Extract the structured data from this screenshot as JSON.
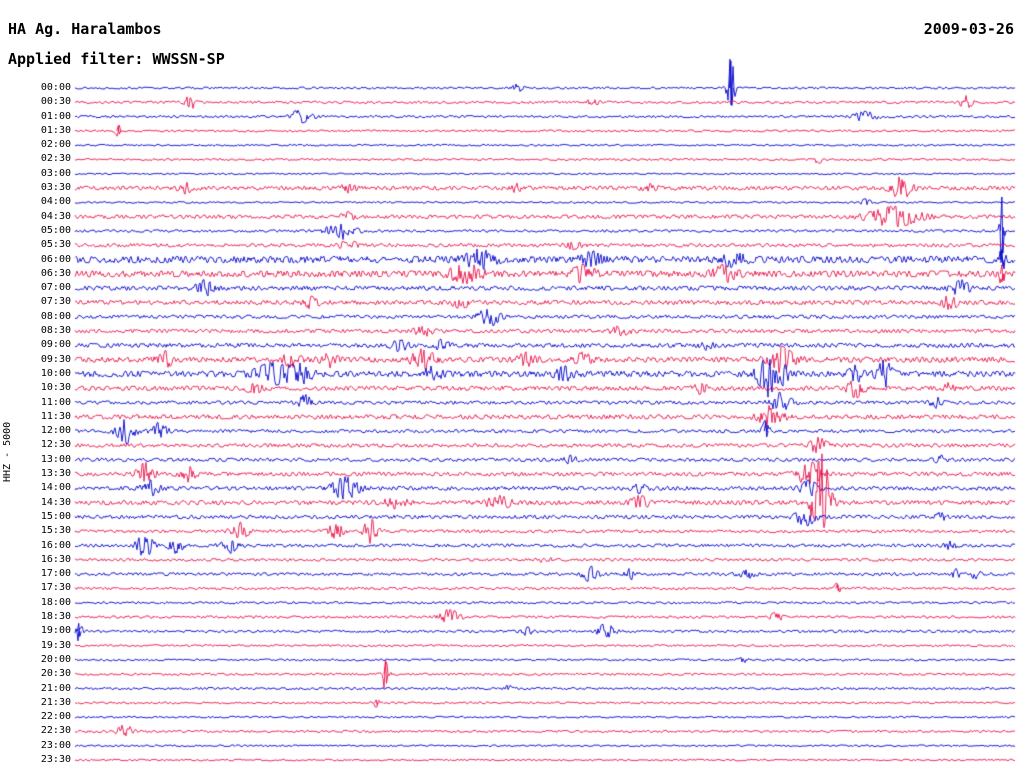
{
  "header": {
    "station": "HA Ag. Haralambos",
    "date": "2009-03-26",
    "filter": "Applied filter: WWSSN-SP"
  },
  "axis": {
    "channel": "HHZ - 5000"
  },
  "chart_data": {
    "type": "line",
    "subtype": "seismogram-helicorder",
    "title": "HA Ag. Haralambos",
    "date": "2009-03-26",
    "filter": "WWSSN-SP",
    "channel_scale_label": "HHZ - 5000",
    "x_axis": "each row is a 30-minute trace, full day 00:00-24:00",
    "colors": {
      "blue": "#0000cc",
      "red": "#e8134a"
    },
    "rows": [
      {
        "t": "00:00",
        "color": "blue",
        "noise": 0.8,
        "events": [
          [
            0.47,
            3,
            4
          ],
          [
            0.697,
            27,
            2.5
          ]
        ]
      },
      {
        "t": "00:30",
        "color": "red",
        "noise": 1.0,
        "events": [
          [
            0.122,
            8,
            3
          ],
          [
            0.55,
            2.5,
            4
          ],
          [
            0.947,
            6,
            4
          ]
        ]
      },
      {
        "t": "01:00",
        "color": "blue",
        "noise": 0.9,
        "events": [
          [
            0.239,
            5,
            8
          ],
          [
            0.84,
            4,
            8
          ]
        ]
      },
      {
        "t": "01:30",
        "color": "red",
        "noise": 0.8,
        "events": [
          [
            0.046,
            5,
            2
          ]
        ]
      },
      {
        "t": "02:00",
        "color": "blue",
        "noise": 0.7,
        "events": []
      },
      {
        "t": "02:30",
        "color": "red",
        "noise": 0.8,
        "events": [
          [
            0.79,
            3,
            3
          ]
        ]
      },
      {
        "t": "03:00",
        "color": "blue",
        "noise": 0.6,
        "events": []
      },
      {
        "t": "03:30",
        "color": "red",
        "noise": 1.6,
        "events": [
          [
            0.117,
            4,
            5
          ],
          [
            0.29,
            3,
            5
          ],
          [
            0.47,
            3,
            5
          ],
          [
            0.61,
            3,
            5
          ],
          [
            0.878,
            9,
            7
          ]
        ]
      },
      {
        "t": "04:00",
        "color": "blue",
        "noise": 0.7,
        "events": [
          [
            0.84,
            2.5,
            4
          ]
        ]
      },
      {
        "t": "04:30",
        "color": "red",
        "noise": 1.5,
        "events": [
          [
            0.29,
            3,
            5
          ],
          [
            0.87,
            8,
            18
          ]
        ]
      },
      {
        "t": "05:00",
        "color": "blue",
        "noise": 1.0,
        "events": [
          [
            0.282,
            7,
            10
          ],
          [
            0.985,
            34,
            1.5
          ]
        ]
      },
      {
        "t": "05:30",
        "color": "red",
        "noise": 1.4,
        "events": [
          [
            0.29,
            4,
            6
          ],
          [
            0.53,
            3,
            5
          ]
        ]
      },
      {
        "t": "06:00",
        "color": "blue",
        "noise": 2.8,
        "events": [
          [
            0.43,
            7,
            10
          ],
          [
            0.55,
            5,
            8
          ],
          [
            0.7,
            5,
            8
          ],
          [
            0.985,
            10,
            2
          ]
        ]
      },
      {
        "t": "06:30",
        "color": "red",
        "noise": 2.6,
        "events": [
          [
            0.415,
            8,
            10
          ],
          [
            0.54,
            6,
            8
          ],
          [
            0.69,
            6,
            8
          ],
          [
            0.985,
            9,
            2
          ]
        ]
      },
      {
        "t": "07:00",
        "color": "blue",
        "noise": 1.8,
        "events": [
          [
            0.138,
            6,
            6
          ],
          [
            0.94,
            8,
            6
          ]
        ]
      },
      {
        "t": "07:30",
        "color": "red",
        "noise": 1.8,
        "events": [
          [
            0.25,
            4,
            6
          ],
          [
            0.41,
            4,
            6
          ],
          [
            0.93,
            5,
            6
          ]
        ]
      },
      {
        "t": "08:00",
        "color": "blue",
        "noise": 1.4,
        "events": [
          [
            0.44,
            8,
            7
          ]
        ]
      },
      {
        "t": "08:30",
        "color": "red",
        "noise": 1.5,
        "events": [
          [
            0.37,
            4,
            6
          ],
          [
            0.58,
            4,
            6
          ]
        ]
      },
      {
        "t": "09:00",
        "color": "blue",
        "noise": 1.7,
        "events": [
          [
            0.345,
            4,
            6
          ],
          [
            0.39,
            4,
            5
          ],
          [
            0.67,
            3,
            5
          ]
        ]
      },
      {
        "t": "09:30",
        "color": "red",
        "noise": 2.2,
        "events": [
          [
            0.096,
            6,
            5
          ],
          [
            0.23,
            5,
            6
          ],
          [
            0.27,
            6,
            5
          ],
          [
            0.37,
            8,
            8
          ],
          [
            0.48,
            5,
            6
          ],
          [
            0.54,
            5,
            5
          ],
          [
            0.75,
            10,
            9
          ]
        ]
      },
      {
        "t": "10:00",
        "color": "blue",
        "noise": 2.4,
        "events": [
          [
            0.21,
            8,
            12
          ],
          [
            0.24,
            7,
            8
          ],
          [
            0.38,
            5,
            6
          ],
          [
            0.52,
            5,
            6
          ],
          [
            0.74,
            20,
            9
          ],
          [
            0.83,
            6,
            5
          ],
          [
            0.86,
            12,
            5
          ]
        ]
      },
      {
        "t": "10:30",
        "color": "red",
        "noise": 1.8,
        "events": [
          [
            0.19,
            4,
            5
          ],
          [
            0.665,
            4,
            5
          ],
          [
            0.83,
            7,
            6
          ],
          [
            0.93,
            4,
            4
          ]
        ]
      },
      {
        "t": "11:00",
        "color": "blue",
        "noise": 1.4,
        "events": [
          [
            0.245,
            6,
            5
          ],
          [
            0.75,
            8,
            7
          ],
          [
            0.915,
            4,
            4
          ]
        ]
      },
      {
        "t": "11:30",
        "color": "red",
        "noise": 1.8,
        "events": [
          [
            0.74,
            9,
            8
          ]
        ]
      },
      {
        "t": "12:00",
        "color": "blue",
        "noise": 1.3,
        "events": [
          [
            0.055,
            10,
            7
          ],
          [
            0.09,
            7,
            5
          ],
          [
            0.734,
            9,
            2.5
          ]
        ]
      },
      {
        "t": "12:30",
        "color": "red",
        "noise": 1.5,
        "events": [
          [
            0.79,
            6,
            6
          ]
        ]
      },
      {
        "t": "13:00",
        "color": "blue",
        "noise": 1.4,
        "events": [
          [
            0.527,
            3,
            4
          ],
          [
            0.92,
            3,
            4
          ]
        ]
      },
      {
        "t": "13:30",
        "color": "red",
        "noise": 1.6,
        "events": [
          [
            0.075,
            9,
            6
          ],
          [
            0.12,
            6,
            5
          ],
          [
            0.78,
            10,
            8
          ]
        ]
      },
      {
        "t": "14:00",
        "color": "blue",
        "noise": 1.6,
        "events": [
          [
            0.08,
            6,
            6
          ],
          [
            0.287,
            9,
            9
          ],
          [
            0.6,
            3,
            5
          ],
          [
            0.78,
            6,
            6
          ]
        ]
      },
      {
        "t": "14:30",
        "color": "red",
        "noise": 1.8,
        "events": [
          [
            0.34,
            4,
            8
          ],
          [
            0.45,
            5,
            8
          ],
          [
            0.6,
            5,
            6
          ],
          [
            0.793,
            45,
            6
          ]
        ]
      },
      {
        "t": "15:00",
        "color": "blue",
        "noise": 1.5,
        "events": [
          [
            0.777,
            7,
            7
          ],
          [
            0.92,
            3,
            4
          ]
        ]
      },
      {
        "t": "15:30",
        "color": "red",
        "noise": 1.2,
        "events": [
          [
            0.175,
            7,
            6
          ],
          [
            0.277,
            7,
            5
          ],
          [
            0.314,
            10,
            5
          ]
        ]
      },
      {
        "t": "16:00",
        "color": "blue",
        "noise": 1.3,
        "events": [
          [
            0.074,
            9,
            6
          ],
          [
            0.107,
            6,
            5
          ],
          [
            0.165,
            6,
            6
          ],
          [
            0.93,
            3,
            4
          ]
        ]
      },
      {
        "t": "16:30",
        "color": "red",
        "noise": 1.1,
        "events": [
          [
            0.5,
            2,
            5
          ]
        ]
      },
      {
        "t": "17:00",
        "color": "blue",
        "noise": 1.2,
        "events": [
          [
            0.548,
            6,
            6
          ],
          [
            0.59,
            4,
            5
          ],
          [
            0.713,
            6,
            5
          ],
          [
            0.936,
            4,
            3
          ],
          [
            0.957,
            4,
            3
          ]
        ]
      },
      {
        "t": "17:30",
        "color": "red",
        "noise": 1.0,
        "events": [
          [
            0.81,
            4,
            2.5
          ]
        ]
      },
      {
        "t": "18:00",
        "color": "blue",
        "noise": 0.9,
        "events": []
      },
      {
        "t": "18:30",
        "color": "red",
        "noise": 1.0,
        "events": [
          [
            0.398,
            6,
            7
          ],
          [
            0.745,
            4,
            4
          ]
        ]
      },
      {
        "t": "19:00",
        "color": "blue",
        "noise": 1.0,
        "events": [
          [
            0.004,
            8,
            2.5
          ],
          [
            0.48,
            3,
            4
          ],
          [
            0.564,
            6,
            6
          ]
        ]
      },
      {
        "t": "19:30",
        "color": "red",
        "noise": 0.8,
        "events": []
      },
      {
        "t": "20:00",
        "color": "blue",
        "noise": 0.8,
        "events": [
          [
            0.71,
            2,
            3
          ]
        ]
      },
      {
        "t": "20:30",
        "color": "red",
        "noise": 0.9,
        "events": [
          [
            0.33,
            14,
            2.5
          ]
        ]
      },
      {
        "t": "21:00",
        "color": "blue",
        "noise": 0.9,
        "events": [
          [
            0.46,
            2.5,
            3
          ]
        ]
      },
      {
        "t": "21:30",
        "color": "red",
        "noise": 0.8,
        "events": [
          [
            0.32,
            3,
            2.5
          ]
        ]
      },
      {
        "t": "22:00",
        "color": "blue",
        "noise": 0.7,
        "events": []
      },
      {
        "t": "22:30",
        "color": "red",
        "noise": 0.9,
        "events": [
          [
            0.053,
            6,
            5
          ]
        ]
      },
      {
        "t": "23:00",
        "color": "blue",
        "noise": 0.7,
        "events": []
      },
      {
        "t": "23:30",
        "color": "red",
        "noise": 0.7,
        "events": []
      }
    ]
  }
}
